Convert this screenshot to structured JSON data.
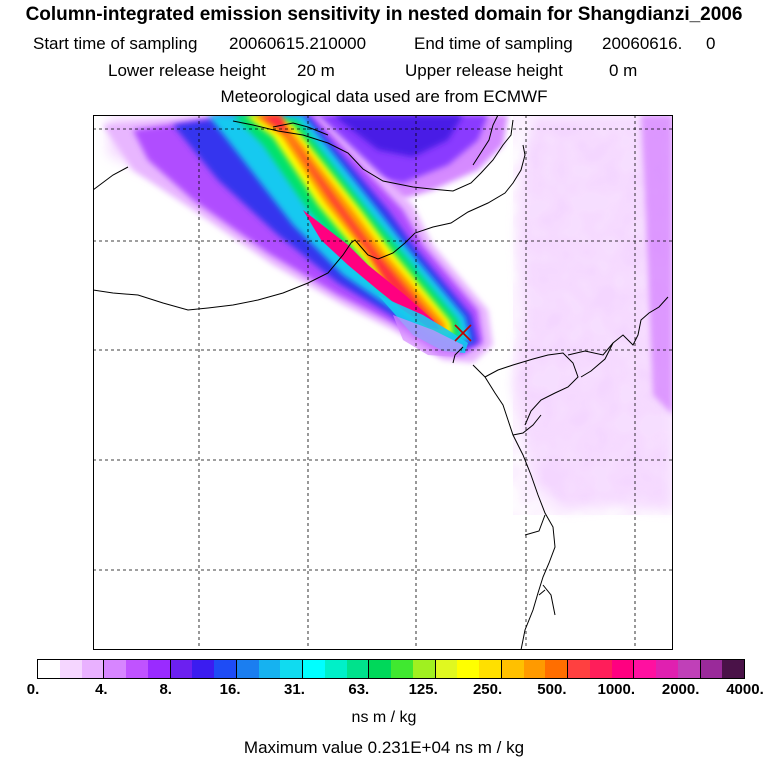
{
  "header": {
    "title": "Column-integrated emission sensitivity in nested domain for Shangdianzi_2006",
    "start_label": "Start time of sampling",
    "start_value": "20060615.210000",
    "end_label": "End time of sampling",
    "end_value": "20060616.     0",
    "lower_label": "Lower release height",
    "lower_value": "20 m",
    "upper_label": "Upper release height",
    "upper_value": "0 m",
    "met_text": "Meteorological data used are from ECMWF"
  },
  "map": {
    "release_site_marker": "cross-icon",
    "plume_color_core": "#ff0080",
    "plume_color_mid": "#ffff00",
    "plume_color_outer": "#00ffff",
    "background_haze_color": "#f2c8ff"
  },
  "colorbar": {
    "tick_labels": [
      "0.",
      "4.",
      "8.",
      "16.",
      "31.",
      "63.",
      "125.",
      "250.",
      "500.",
      "1000.",
      "2000.",
      "4000."
    ],
    "colors": [
      "#ffffff",
      "#f5d6ff",
      "#e9b1ff",
      "#d785ff",
      "#c053ff",
      "#9a2bff",
      "#6c20f0",
      "#3b1cf0",
      "#1e4cf5",
      "#1b7ef0",
      "#16b2f0",
      "#10dbf0",
      "#00ffff",
      "#00f0c8",
      "#00e28c",
      "#00d85a",
      "#40e830",
      "#a0f020",
      "#e0f820",
      "#ffff00",
      "#ffe000",
      "#ffc000",
      "#ff9a00",
      "#ff6e00",
      "#ff4040",
      "#ff1e5a",
      "#ff0080",
      "#ff10a0",
      "#e020b0",
      "#c040b8",
      "#9a2a9a",
      "#4a1248"
    ],
    "units": "ns m / kg"
  },
  "footer": {
    "max_value_text": "Maximum value  0.231E+04 ns m / kg"
  }
}
